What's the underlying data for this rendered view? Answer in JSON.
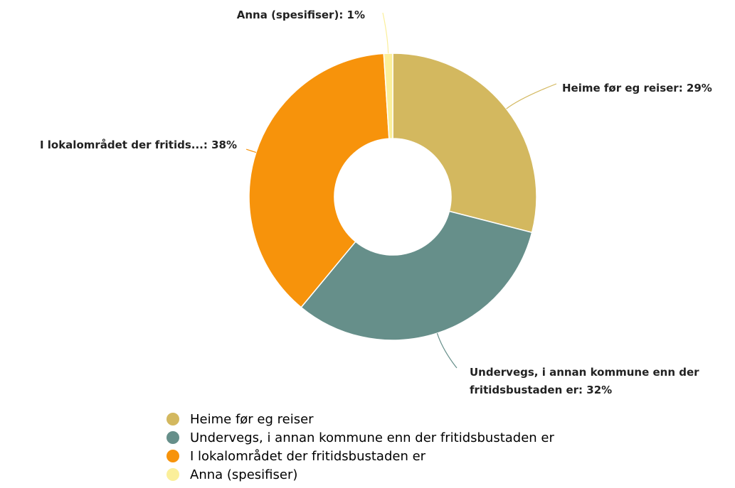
{
  "chart_data": {
    "type": "pie",
    "donut": true,
    "categories": [
      "Heime før eg reiser",
      "Undervegs, i annan kommune enn der fritidsbustaden er",
      "I lokalområdet der fritidsbustaden er",
      "Anna (spesifiser)"
    ],
    "values": [
      29,
      32,
      38,
      1
    ],
    "value_labels": [
      "Heime før eg reiser: 29%",
      "Undervegs, i annan kommune enn der fritidsbustaden er: 32%",
      "I lokalområdet der fritids...: 38%",
      "Anna (spesifiser): 1%"
    ],
    "colors": [
      "#d3b85f",
      "#668f8a",
      "#f7930b",
      "#fbef9a"
    ],
    "legend": "bottom"
  }
}
